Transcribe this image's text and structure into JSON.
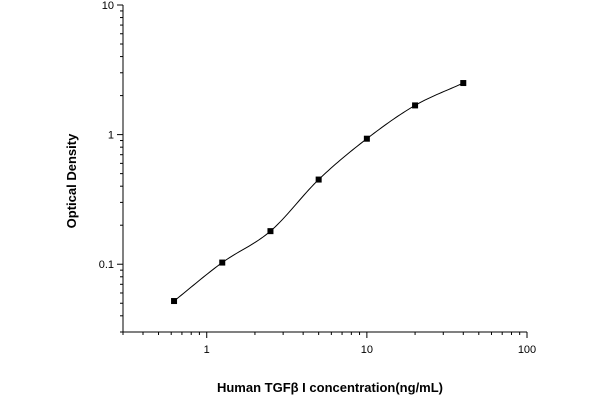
{
  "chart_data": {
    "type": "scatter",
    "title": "",
    "xlabel": "Human TGFβ I concentration(ng/mL)",
    "ylabel": "Optical Density",
    "x_scale": "log",
    "y_scale": "log",
    "xlim": [
      0.3,
      100
    ],
    "ylim": [
      0.03,
      10
    ],
    "x_ticks": [
      {
        "value": 1,
        "label": "1"
      },
      {
        "value": 10,
        "label": "10"
      },
      {
        "value": 100,
        "label": "100"
      }
    ],
    "y_ticks": [
      {
        "value": 0.1,
        "label": "0.1"
      },
      {
        "value": 1,
        "label": "1"
      },
      {
        "value": 10,
        "label": "10"
      }
    ],
    "grid": false,
    "legend": "none",
    "series": [
      {
        "marker": "square",
        "color": "#000000",
        "x": [
          0.625,
          1.25,
          2.5,
          5,
          10,
          20,
          40
        ],
        "y": [
          0.052,
          0.103,
          0.18,
          0.45,
          0.93,
          1.68,
          2.5
        ]
      }
    ],
    "fit_curve": {
      "type": "four-parameter logistic",
      "color": "#000000",
      "x_range": [
        0.625,
        40
      ]
    }
  }
}
